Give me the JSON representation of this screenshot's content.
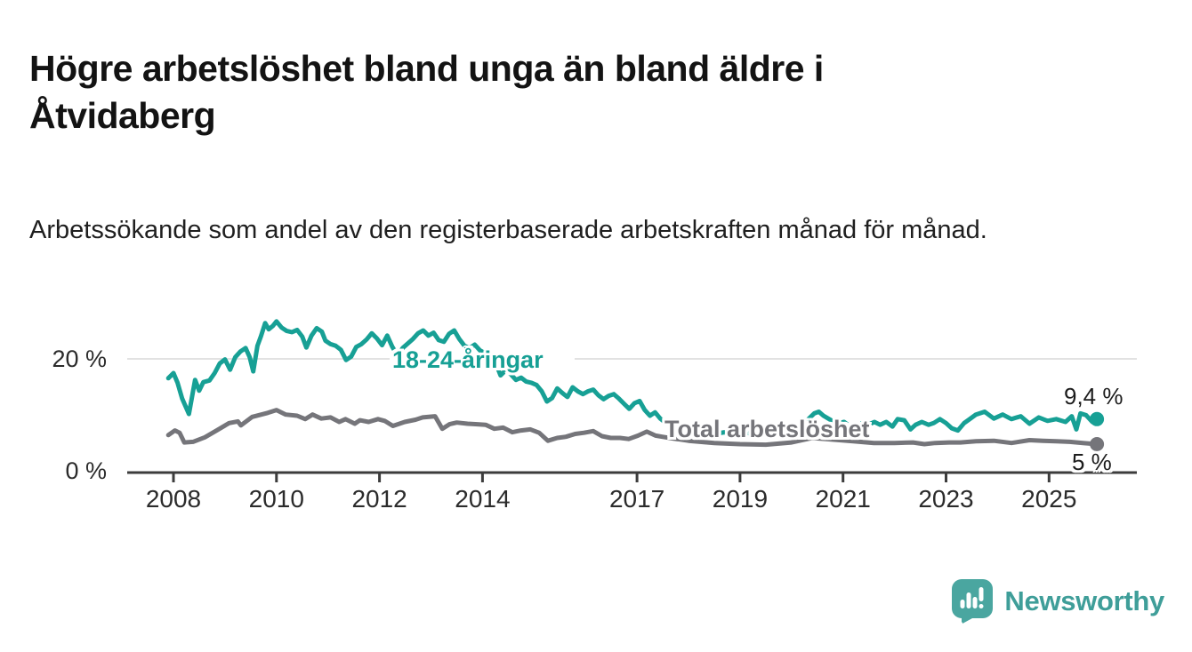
{
  "chart_data": {
    "type": "line",
    "title": "Högre arbetslöshet bland unga än bland äldre i Åtvidaberg",
    "subtitle": "Arbetssökande som andel av den registerbaserade arbetskraften månad för månad.",
    "unit": "%",
    "grid": "single horizontal gridline at 20 %",
    "legend_position": "inline labels on lines",
    "colors": {
      "young_series": "#17a095",
      "total_series": "#75757a",
      "axis": "#3c3c3c",
      "tick_text": "#2b2b2b",
      "grid": "#d8d8d8",
      "background": "#ffffff"
    },
    "x_axis": {
      "ticks": [
        2008,
        2010,
        2012,
        2014,
        2017,
        2019,
        2021,
        2023,
        2025
      ],
      "range_years": [
        2007.75,
        2026.6
      ]
    },
    "y_axis": {
      "ticks": [
        {
          "value": 0,
          "label": "0 %"
        },
        {
          "value": 20,
          "label": "20 %"
        }
      ],
      "max_value": 28
    },
    "series": [
      {
        "name": "18-24-åringar",
        "color": "#17a095",
        "end_label": "9,4 %",
        "end_value": 9.4,
        "points": [
          [
            2007.9,
            16.6
          ],
          [
            2008.0,
            17.5
          ],
          [
            2008.08,
            15.8
          ],
          [
            2008.17,
            13.0
          ],
          [
            2008.3,
            10.3
          ],
          [
            2008.42,
            16.3
          ],
          [
            2008.5,
            14.4
          ],
          [
            2008.58,
            15.9
          ],
          [
            2008.7,
            16.2
          ],
          [
            2008.8,
            17.5
          ],
          [
            2008.9,
            19.2
          ],
          [
            2009.0,
            19.9
          ],
          [
            2009.1,
            18.1
          ],
          [
            2009.2,
            20.3
          ],
          [
            2009.3,
            21.3
          ],
          [
            2009.4,
            21.9
          ],
          [
            2009.48,
            20.3
          ],
          [
            2009.55,
            17.8
          ],
          [
            2009.63,
            22.3
          ],
          [
            2009.7,
            24.0
          ],
          [
            2009.78,
            26.3
          ],
          [
            2009.85,
            25.2
          ],
          [
            2009.93,
            25.8
          ],
          [
            2010.0,
            26.6
          ],
          [
            2010.1,
            25.5
          ],
          [
            2010.2,
            24.9
          ],
          [
            2010.3,
            24.7
          ],
          [
            2010.4,
            25.1
          ],
          [
            2010.5,
            23.9
          ],
          [
            2010.58,
            22.0
          ],
          [
            2010.68,
            24.1
          ],
          [
            2010.78,
            25.4
          ],
          [
            2010.88,
            24.8
          ],
          [
            2010.95,
            23.2
          ],
          [
            2011.05,
            22.6
          ],
          [
            2011.15,
            22.3
          ],
          [
            2011.25,
            21.6
          ],
          [
            2011.35,
            19.8
          ],
          [
            2011.45,
            20.4
          ],
          [
            2011.55,
            22.1
          ],
          [
            2011.65,
            22.6
          ],
          [
            2011.75,
            23.4
          ],
          [
            2011.85,
            24.5
          ],
          [
            2011.95,
            23.6
          ],
          [
            2012.05,
            22.4
          ],
          [
            2012.15,
            24.1
          ],
          [
            2012.25,
            22.1
          ],
          [
            2012.35,
            20.6
          ],
          [
            2012.45,
            21.9
          ],
          [
            2012.55,
            22.7
          ],
          [
            2012.65,
            23.5
          ],
          [
            2012.75,
            24.5
          ],
          [
            2012.85,
            25.0
          ],
          [
            2012.95,
            24.1
          ],
          [
            2013.05,
            24.6
          ],
          [
            2013.15,
            23.3
          ],
          [
            2013.25,
            23.0
          ],
          [
            2013.35,
            24.4
          ],
          [
            2013.45,
            25.0
          ],
          [
            2013.55,
            23.5
          ],
          [
            2013.65,
            22.3
          ],
          [
            2013.75,
            21.9
          ],
          [
            2013.85,
            22.5
          ],
          [
            2013.95,
            21.5
          ],
          [
            2014.05,
            21.0
          ],
          [
            2014.15,
            20.3
          ],
          [
            2014.25,
            19.4
          ],
          [
            2014.35,
            17.1
          ],
          [
            2014.45,
            18.0
          ],
          [
            2014.55,
            17.3
          ],
          [
            2014.65,
            16.3
          ],
          [
            2014.75,
            16.7
          ],
          [
            2014.85,
            16.0
          ],
          [
            2014.95,
            15.8
          ],
          [
            2015.05,
            15.4
          ],
          [
            2015.15,
            14.3
          ],
          [
            2015.25,
            12.5
          ],
          [
            2015.35,
            13.1
          ],
          [
            2015.45,
            14.8
          ],
          [
            2015.55,
            14.0
          ],
          [
            2015.65,
            13.3
          ],
          [
            2015.75,
            15.0
          ],
          [
            2015.85,
            14.3
          ],
          [
            2015.95,
            13.8
          ],
          [
            2016.05,
            14.3
          ],
          [
            2016.15,
            14.6
          ],
          [
            2016.25,
            13.6
          ],
          [
            2016.35,
            12.9
          ],
          [
            2016.45,
            13.5
          ],
          [
            2016.55,
            13.8
          ],
          [
            2016.65,
            13.0
          ],
          [
            2016.75,
            12.1
          ],
          [
            2016.85,
            11.2
          ],
          [
            2016.95,
            12.2
          ],
          [
            2017.05,
            12.6
          ],
          [
            2017.15,
            11.0
          ],
          [
            2017.25,
            10.0
          ],
          [
            2017.35,
            10.6
          ],
          [
            2017.45,
            9.5
          ],
          [
            2017.55,
            8.8
          ],
          [
            2017.65,
            9.2
          ],
          [
            2017.75,
            8.3
          ],
          [
            2017.85,
            7.9
          ],
          [
            2017.95,
            8.3
          ],
          [
            2018.05,
            7.6
          ],
          [
            2018.15,
            7.2
          ],
          [
            2018.3,
            7.0
          ],
          [
            2018.5,
            6.8
          ],
          [
            2018.7,
            7.1
          ],
          [
            2018.9,
            6.9
          ],
          [
            2019.1,
            7.0
          ],
          [
            2019.3,
            6.8
          ],
          [
            2019.5,
            7.0
          ],
          [
            2019.7,
            7.1
          ],
          [
            2019.92,
            7.4
          ],
          [
            2020.1,
            8.1
          ],
          [
            2020.27,
            8.9
          ],
          [
            2020.44,
            10.4
          ],
          [
            2020.53,
            10.7
          ],
          [
            2020.62,
            10.0
          ],
          [
            2020.79,
            9.1
          ],
          [
            2020.92,
            8.7
          ],
          [
            2021.02,
            8.9
          ],
          [
            2021.14,
            8.1
          ],
          [
            2021.26,
            7.6
          ],
          [
            2021.37,
            8.7
          ],
          [
            2021.49,
            8.4
          ],
          [
            2021.61,
            8.9
          ],
          [
            2021.72,
            8.4
          ],
          [
            2021.84,
            8.9
          ],
          [
            2021.96,
            8.1
          ],
          [
            2022.06,
            9.4
          ],
          [
            2022.19,
            9.2
          ],
          [
            2022.31,
            7.6
          ],
          [
            2022.41,
            8.4
          ],
          [
            2022.53,
            8.9
          ],
          [
            2022.66,
            8.4
          ],
          [
            2022.76,
            8.7
          ],
          [
            2022.88,
            9.4
          ],
          [
            2023.0,
            8.7
          ],
          [
            2023.11,
            7.8
          ],
          [
            2023.23,
            7.4
          ],
          [
            2023.35,
            8.7
          ],
          [
            2023.46,
            9.4
          ],
          [
            2023.58,
            10.2
          ],
          [
            2023.75,
            10.7
          ],
          [
            2023.93,
            9.5
          ],
          [
            2024.1,
            10.2
          ],
          [
            2024.27,
            9.4
          ],
          [
            2024.45,
            9.9
          ],
          [
            2024.62,
            8.6
          ],
          [
            2024.8,
            9.7
          ],
          [
            2024.97,
            9.1
          ],
          [
            2025.14,
            9.4
          ],
          [
            2025.32,
            8.9
          ],
          [
            2025.44,
            9.9
          ],
          [
            2025.53,
            7.6
          ],
          [
            2025.61,
            10.4
          ],
          [
            2025.72,
            10.1
          ],
          [
            2025.84,
            8.9
          ],
          [
            2025.93,
            9.4
          ]
        ]
      },
      {
        "name": "Total arbetslöshet",
        "color": "#75757a",
        "end_label": "5 %",
        "end_value": 5,
        "points": [
          [
            2007.9,
            6.6
          ],
          [
            2008.03,
            7.4
          ],
          [
            2008.12,
            7.0
          ],
          [
            2008.21,
            5.3
          ],
          [
            2008.38,
            5.4
          ],
          [
            2008.61,
            6.2
          ],
          [
            2008.84,
            7.4
          ],
          [
            2009.08,
            8.7
          ],
          [
            2009.25,
            9.0
          ],
          [
            2009.31,
            8.3
          ],
          [
            2009.53,
            9.8
          ],
          [
            2009.83,
            10.5
          ],
          [
            2010.0,
            11.0
          ],
          [
            2010.18,
            10.2
          ],
          [
            2010.4,
            10.0
          ],
          [
            2010.56,
            9.4
          ],
          [
            2010.7,
            10.2
          ],
          [
            2010.87,
            9.5
          ],
          [
            2011.05,
            9.7
          ],
          [
            2011.22,
            8.9
          ],
          [
            2011.34,
            9.4
          ],
          [
            2011.52,
            8.6
          ],
          [
            2011.62,
            9.2
          ],
          [
            2011.79,
            8.9
          ],
          [
            2011.97,
            9.4
          ],
          [
            2012.1,
            9.1
          ],
          [
            2012.26,
            8.2
          ],
          [
            2012.49,
            8.9
          ],
          [
            2012.7,
            9.3
          ],
          [
            2012.84,
            9.7
          ],
          [
            2013.08,
            9.9
          ],
          [
            2013.22,
            7.7
          ],
          [
            2013.36,
            8.5
          ],
          [
            2013.5,
            8.8
          ],
          [
            2013.71,
            8.6
          ],
          [
            2013.9,
            8.5
          ],
          [
            2014.06,
            8.4
          ],
          [
            2014.23,
            7.7
          ],
          [
            2014.4,
            7.9
          ],
          [
            2014.58,
            7.1
          ],
          [
            2014.75,
            7.4
          ],
          [
            2014.93,
            7.6
          ],
          [
            2015.1,
            7.0
          ],
          [
            2015.27,
            5.6
          ],
          [
            2015.45,
            6.1
          ],
          [
            2015.62,
            6.3
          ],
          [
            2015.8,
            6.8
          ],
          [
            2015.97,
            7.0
          ],
          [
            2016.15,
            7.3
          ],
          [
            2016.32,
            6.4
          ],
          [
            2016.49,
            6.1
          ],
          [
            2016.67,
            6.1
          ],
          [
            2016.84,
            5.9
          ],
          [
            2017.02,
            6.5
          ],
          [
            2017.19,
            7.2
          ],
          [
            2017.36,
            6.5
          ],
          [
            2017.49,
            6.3
          ],
          [
            2017.7,
            6.0
          ],
          [
            2018.0,
            5.6
          ],
          [
            2018.5,
            5.2
          ],
          [
            2019.0,
            5.0
          ],
          [
            2019.5,
            4.9
          ],
          [
            2020.0,
            5.3
          ],
          [
            2020.4,
            6.1
          ],
          [
            2020.8,
            5.8
          ],
          [
            2021.2,
            5.5
          ],
          [
            2021.6,
            5.2
          ],
          [
            2022.0,
            5.2
          ],
          [
            2022.36,
            5.3
          ],
          [
            2022.58,
            5.0
          ],
          [
            2022.79,
            5.2
          ],
          [
            2023.06,
            5.3
          ],
          [
            2023.28,
            5.3
          ],
          [
            2023.58,
            5.5
          ],
          [
            2023.93,
            5.6
          ],
          [
            2024.27,
            5.2
          ],
          [
            2024.62,
            5.7
          ],
          [
            2024.88,
            5.6
          ],
          [
            2025.14,
            5.5
          ],
          [
            2025.4,
            5.4
          ],
          [
            2025.66,
            5.2
          ],
          [
            2025.93,
            5.0
          ]
        ]
      }
    ]
  },
  "footer": {
    "brand": "Newsworthy",
    "logo_icon": "speech-bubble-with-bar-chart-and-exclamation",
    "brand_color": "#3f9e99",
    "icon_color": "#4aa6a0"
  }
}
